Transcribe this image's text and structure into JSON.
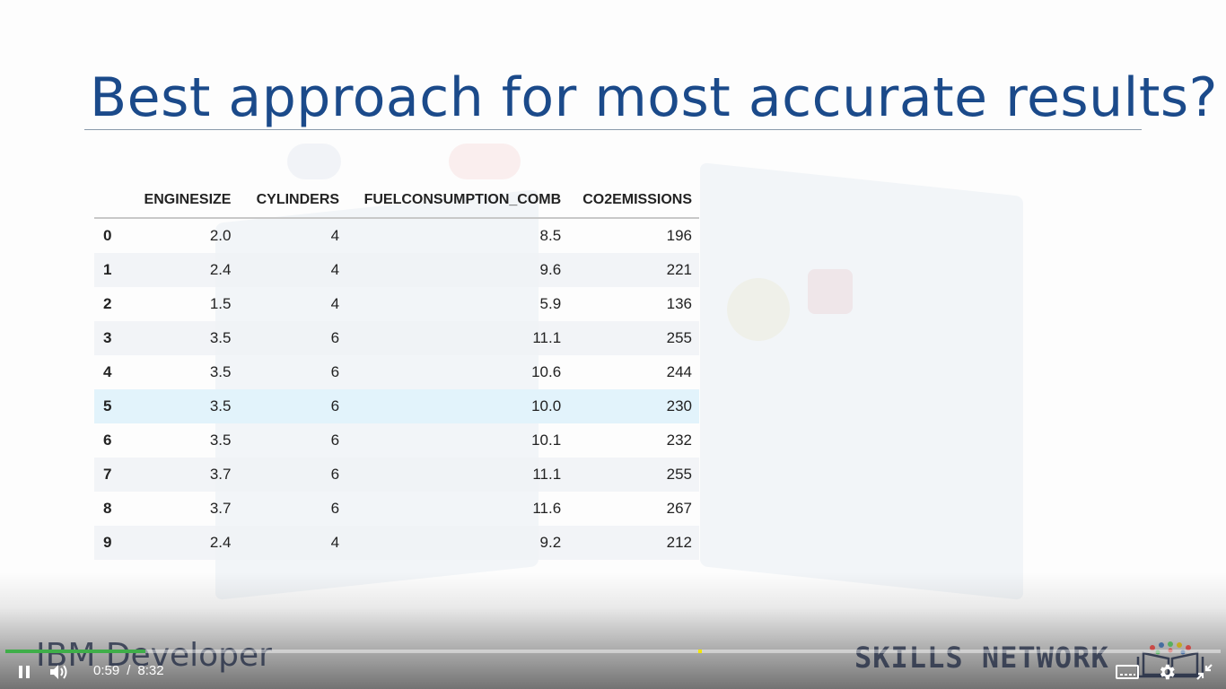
{
  "slide": {
    "title": "Best approach for most accurate results?"
  },
  "table": {
    "columns": [
      "",
      "ENGINESIZE",
      "CYLINDERS",
      "FUELCONSUMPTION_COMB",
      "CO2EMISSIONS"
    ],
    "rows": [
      [
        "0",
        "2.0",
        "4",
        "8.5",
        "196"
      ],
      [
        "1",
        "2.4",
        "4",
        "9.6",
        "221"
      ],
      [
        "2",
        "1.5",
        "4",
        "5.9",
        "136"
      ],
      [
        "3",
        "3.5",
        "6",
        "11.1",
        "255"
      ],
      [
        "4",
        "3.5",
        "6",
        "10.6",
        "244"
      ],
      [
        "5",
        "3.5",
        "6",
        "10.0",
        "230"
      ],
      [
        "6",
        "3.5",
        "6",
        "10.1",
        "232"
      ],
      [
        "7",
        "3.7",
        "6",
        "11.1",
        "255"
      ],
      [
        "8",
        "3.7",
        "6",
        "11.6",
        "267"
      ],
      [
        "9",
        "2.4",
        "4",
        "9.2",
        "212"
      ]
    ],
    "highlighted_row": 5
  },
  "branding": {
    "left": "IBM Developer",
    "right": "SKILLS NETWORK"
  },
  "player": {
    "current_time": "0:59",
    "separator": "/",
    "duration": "8:32",
    "progress_fraction": 0.115,
    "state": "playing",
    "icons": {
      "pause": "pause-icon",
      "volume": "volume-icon",
      "captions": "captions-icon",
      "settings": "gear-icon",
      "exit_fullscreen": "exit-fullscreen-icon"
    }
  },
  "colors": {
    "title": "#1b4a8a",
    "progress_played": "#3fae49",
    "highlight_row": "#e2f3fb"
  }
}
